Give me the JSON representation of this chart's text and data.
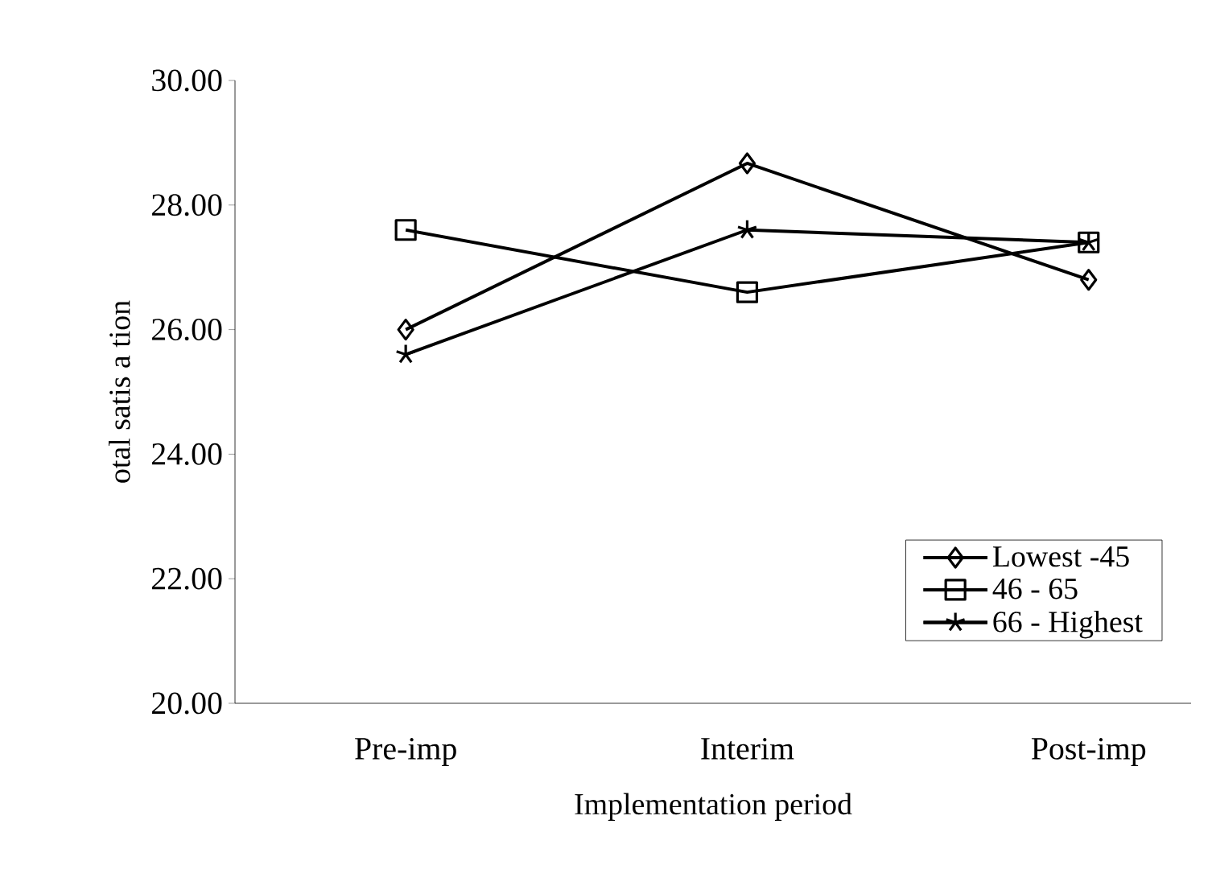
{
  "chart_data": {
    "type": "line",
    "xlabel": "Implementation period",
    "ylabel": "otal satis a tion",
    "categories": [
      "Pre-imp",
      "Interim",
      "Post-imp"
    ],
    "ylim": [
      20,
      30
    ],
    "yticks": [
      {
        "value": 20,
        "label": "20.00"
      },
      {
        "value": 22,
        "label": "22.00"
      },
      {
        "value": 24,
        "label": "24.00"
      },
      {
        "value": 26,
        "label": "26.00"
      },
      {
        "value": 28,
        "label": "28.00"
      },
      {
        "value": 30,
        "label": "30.00"
      }
    ],
    "legend": "bottom right",
    "grid": false,
    "series": [
      {
        "name": "Lowest -45",
        "color": "#000000",
        "marker": "diamond",
        "values": [
          26.0,
          28.67,
          26.8
        ]
      },
      {
        "name": "46 - 65",
        "color": "#000000",
        "marker": "square",
        "values": [
          27.6,
          26.6,
          27.4
        ]
      },
      {
        "name": "66 - Highest",
        "color": "#000000",
        "marker": "cross",
        "values": [
          25.6,
          27.6,
          27.4
        ]
      }
    ]
  }
}
